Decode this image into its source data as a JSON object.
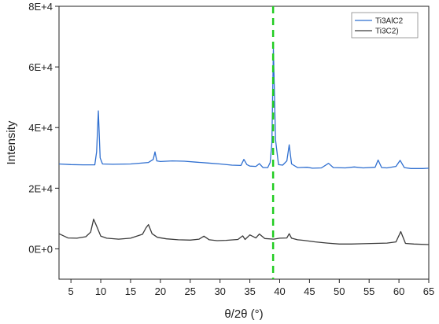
{
  "chart_data": {
    "type": "line",
    "xlabel": "θ/2θ (°)",
    "ylabel": "Intensity",
    "xlim": [
      3,
      65
    ],
    "ylim": [
      -10000,
      80000
    ],
    "x_ticks": [
      5,
      10,
      15,
      20,
      25,
      30,
      35,
      40,
      45,
      50,
      55,
      60,
      65
    ],
    "x_tick_labels": [
      "5",
      "10",
      "15",
      "20",
      "25",
      "30",
      "35",
      "40",
      "45",
      "50",
      "55",
      "60",
      "65"
    ],
    "y_ticks": [
      0,
      20000,
      40000,
      60000,
      80000
    ],
    "y_tick_labels": [
      "0E+0",
      "2E+4",
      "4E+4",
      "6E+4",
      "8E+4"
    ],
    "grid": false,
    "legend_position": "top-right",
    "reference_line": {
      "x": 38.9,
      "style": "dashed",
      "color": "#22cc22"
    },
    "series": [
      {
        "name": "Ti3AlC2",
        "color": "#2f6fd0",
        "x": [
          3,
          5,
          7,
          9,
          9.3,
          9.6,
          9.9,
          10.3,
          12,
          15,
          18,
          18.8,
          19.1,
          19.4,
          20,
          22,
          24,
          26,
          28,
          30,
          32,
          33.5,
          34,
          34.5,
          35,
          36,
          36.6,
          37.2,
          38,
          38.4,
          38.7,
          38.95,
          39.3,
          39.8,
          40.5,
          41.2,
          41.6,
          42,
          43,
          44.6,
          45.5,
          47,
          48.2,
          49,
          51,
          52.5,
          54,
          56,
          56.5,
          57.1,
          58,
          59.5,
          60.2,
          60.9,
          62,
          64,
          65
        ],
        "values": [
          28000,
          27800,
          27700,
          27700,
          32000,
          45500,
          30000,
          28000,
          27900,
          28000,
          28500,
          29500,
          32000,
          29000,
          28800,
          29000,
          28900,
          28600,
          28300,
          28000,
          27600,
          27500,
          29500,
          27800,
          27300,
          27200,
          28100,
          26800,
          26800,
          28500,
          35000,
          66000,
          36000,
          27800,
          27600,
          29000,
          34300,
          28000,
          26800,
          26900,
          26600,
          26700,
          28200,
          26800,
          26700,
          27000,
          26700,
          26900,
          29300,
          26800,
          26700,
          27200,
          29200,
          26800,
          26500,
          26500,
          26600
        ]
      },
      {
        "name": "Ti3C2)",
        "color": "#3a3a3a",
        "x": [
          3,
          4.5,
          6,
          7.5,
          8.3,
          8.8,
          9.3,
          10,
          11,
          13,
          15,
          17,
          17.6,
          18,
          18.6,
          19.5,
          21,
          23,
          25,
          26.5,
          27.3,
          28.2,
          29.5,
          31,
          33,
          33.8,
          34.2,
          35,
          36,
          36.6,
          37.5,
          39,
          40,
          41.2,
          41.6,
          42,
          43,
          44,
          46,
          48,
          50,
          52,
          54,
          56,
          58,
          59.5,
          60.3,
          61.1,
          62.5,
          65
        ],
        "values": [
          5000,
          3600,
          3500,
          4000,
          5500,
          9800,
          7500,
          4200,
          3500,
          3200,
          3500,
          4800,
          7000,
          8000,
          5000,
          3800,
          3300,
          3000,
          2900,
          3200,
          4200,
          3000,
          2700,
          2800,
          3100,
          4300,
          3100,
          4600,
          3600,
          4900,
          3400,
          3200,
          3500,
          3600,
          5000,
          3500,
          3000,
          2800,
          2300,
          1900,
          1600,
          1600,
          1700,
          1800,
          1900,
          2300,
          5700,
          1800,
          1600,
          1400
        ]
      }
    ]
  }
}
